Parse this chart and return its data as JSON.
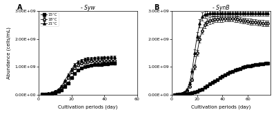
{
  "title_A": "- Syw",
  "title_B": "- SynB",
  "xlabel": "Cultivation periods (day)",
  "ylabel": "Abundance (cells/mL)",
  "panel_A_label": "A",
  "panel_B_label": "B",
  "legend_labels": [
    "15°C",
    "18°C",
    "21°C"
  ],
  "A_15": {
    "x": [
      2,
      4,
      6,
      8,
      10,
      12,
      14,
      16,
      18,
      20,
      22,
      24,
      26,
      28,
      30,
      32,
      34,
      36,
      38,
      40,
      42,
      44,
      46
    ],
    "y": [
      0.01,
      0.02,
      0.03,
      0.05,
      0.08,
      0.12,
      0.18,
      0.28,
      0.42,
      0.6,
      0.75,
      0.88,
      0.95,
      1.0,
      1.03,
      1.05,
      1.07,
      1.08,
      1.09,
      1.1,
      1.11,
      1.12,
      1.12
    ],
    "yerr": [
      0.005,
      0.005,
      0.005,
      0.008,
      0.008,
      0.01,
      0.015,
      0.02,
      0.03,
      0.03,
      0.03,
      0.03,
      0.03,
      0.03,
      0.03,
      0.03,
      0.03,
      0.03,
      0.03,
      0.03,
      0.03,
      0.03,
      0.03
    ]
  },
  "A_18": {
    "x": [
      2,
      4,
      6,
      8,
      10,
      12,
      14,
      16,
      18,
      20,
      22,
      24,
      26,
      28,
      30,
      32,
      34,
      36,
      38,
      40,
      42,
      44,
      46
    ],
    "y": [
      0.01,
      0.02,
      0.04,
      0.07,
      0.11,
      0.17,
      0.26,
      0.42,
      0.6,
      0.8,
      0.95,
      1.05,
      1.12,
      1.16,
      1.18,
      1.2,
      1.2,
      1.21,
      1.21,
      1.22,
      1.22,
      1.23,
      1.23
    ],
    "yerr": [
      0.005,
      0.005,
      0.008,
      0.008,
      0.01,
      0.015,
      0.02,
      0.03,
      0.04,
      0.04,
      0.03,
      0.03,
      0.03,
      0.03,
      0.03,
      0.03,
      0.03,
      0.03,
      0.03,
      0.03,
      0.03,
      0.03,
      0.03
    ]
  },
  "A_21": {
    "x": [
      2,
      4,
      6,
      8,
      10,
      12,
      14,
      16,
      18,
      20,
      22,
      24,
      26,
      28,
      30,
      32,
      34,
      36,
      38,
      40,
      42,
      44,
      46
    ],
    "y": [
      0.01,
      0.02,
      0.04,
      0.08,
      0.13,
      0.2,
      0.32,
      0.52,
      0.72,
      0.92,
      1.08,
      1.18,
      1.24,
      1.28,
      1.3,
      1.3,
      1.32,
      1.33,
      1.33,
      1.34,
      1.34,
      1.35,
      1.35
    ],
    "yerr": [
      0.005,
      0.005,
      0.008,
      0.01,
      0.012,
      0.015,
      0.025,
      0.03,
      0.04,
      0.04,
      0.04,
      0.04,
      0.04,
      0.04,
      0.04,
      0.04,
      0.04,
      0.04,
      0.04,
      0.04,
      0.04,
      0.04,
      0.04
    ]
  },
  "B_15": {
    "x": [
      2,
      4,
      6,
      8,
      10,
      12,
      14,
      16,
      18,
      20,
      22,
      24,
      26,
      28,
      30,
      32,
      34,
      36,
      38,
      40,
      42,
      44,
      46,
      48,
      50,
      52,
      54,
      56,
      58,
      60,
      62,
      64,
      66,
      68,
      70,
      72,
      74,
      76
    ],
    "y": [
      0.005,
      0.008,
      0.01,
      0.015,
      0.02,
      0.03,
      0.04,
      0.06,
      0.09,
      0.12,
      0.16,
      0.2,
      0.26,
      0.32,
      0.38,
      0.44,
      0.5,
      0.55,
      0.6,
      0.65,
      0.7,
      0.75,
      0.8,
      0.84,
      0.88,
      0.91,
      0.94,
      0.97,
      1.0,
      1.02,
      1.04,
      1.06,
      1.08,
      1.09,
      1.1,
      1.11,
      1.12,
      1.13
    ],
    "yerr": [
      0.003,
      0.003,
      0.003,
      0.003,
      0.005,
      0.005,
      0.005,
      0.008,
      0.01,
      0.01,
      0.015,
      0.02,
      0.025,
      0.025,
      0.025,
      0.025,
      0.025,
      0.025,
      0.025,
      0.025,
      0.025,
      0.025,
      0.025,
      0.025,
      0.025,
      0.025,
      0.025,
      0.025,
      0.025,
      0.025,
      0.025,
      0.025,
      0.025,
      0.025,
      0.025,
      0.025,
      0.025,
      0.025
    ]
  },
  "B_18": {
    "x": [
      2,
      4,
      6,
      8,
      10,
      12,
      14,
      16,
      18,
      20,
      22,
      24,
      26,
      28,
      30,
      32,
      34,
      36,
      38,
      40,
      42,
      44,
      46,
      48,
      50,
      52,
      54,
      56,
      58,
      60,
      62,
      64,
      66,
      68,
      70,
      72,
      74,
      76
    ],
    "y": [
      0.005,
      0.01,
      0.02,
      0.04,
      0.08,
      0.15,
      0.28,
      0.55,
      1.0,
      1.5,
      2.0,
      2.3,
      2.5,
      2.6,
      2.65,
      2.68,
      2.7,
      2.71,
      2.72,
      2.72,
      2.73,
      2.73,
      2.73,
      2.73,
      2.72,
      2.7,
      2.68,
      2.66,
      2.65,
      2.63,
      2.62,
      2.61,
      2.6,
      2.59,
      2.58,
      2.57,
      2.56,
      2.55
    ],
    "yerr": [
      0.003,
      0.003,
      0.005,
      0.005,
      0.01,
      0.015,
      0.025,
      0.05,
      0.08,
      0.1,
      0.12,
      0.12,
      0.12,
      0.12,
      0.12,
      0.12,
      0.1,
      0.1,
      0.1,
      0.1,
      0.1,
      0.1,
      0.1,
      0.1,
      0.1,
      0.1,
      0.1,
      0.1,
      0.1,
      0.1,
      0.1,
      0.1,
      0.1,
      0.1,
      0.1,
      0.1,
      0.1,
      0.1
    ]
  },
  "B_21": {
    "x": [
      2,
      4,
      6,
      8,
      10,
      12,
      14,
      16,
      18,
      20,
      22,
      24,
      26,
      28,
      30,
      32,
      34,
      36,
      38,
      40,
      42,
      44,
      46,
      48,
      50,
      52,
      54,
      56,
      58,
      60,
      62,
      64,
      66,
      68,
      70,
      72,
      74,
      76
    ],
    "y": [
      0.005,
      0.01,
      0.02,
      0.05,
      0.1,
      0.2,
      0.42,
      0.85,
      1.5,
      2.1,
      2.55,
      2.8,
      2.88,
      2.9,
      2.92,
      2.93,
      2.93,
      2.93,
      2.93,
      2.93,
      2.93,
      2.93,
      2.93,
      2.93,
      2.93,
      2.93,
      2.93,
      2.93,
      2.93,
      2.93,
      2.93,
      2.93,
      2.93,
      2.93,
      2.93,
      2.93,
      2.93,
      2.93
    ],
    "yerr": [
      0.003,
      0.003,
      0.005,
      0.008,
      0.01,
      0.02,
      0.04,
      0.08,
      0.12,
      0.15,
      0.15,
      0.15,
      0.12,
      0.1,
      0.1,
      0.1,
      0.1,
      0.1,
      0.1,
      0.1,
      0.1,
      0.1,
      0.1,
      0.1,
      0.1,
      0.1,
      0.1,
      0.1,
      0.1,
      0.1,
      0.1,
      0.1,
      0.1,
      0.1,
      0.1,
      0.1,
      0.1,
      0.1
    ]
  },
  "A_ylim": [
    0,
    3000000000.0
  ],
  "A_xlim": [
    0,
    60
  ],
  "B_ylim": [
    0,
    3000000000.0
  ],
  "B_xlim": [
    0,
    78
  ],
  "scale": 1000000000.0
}
